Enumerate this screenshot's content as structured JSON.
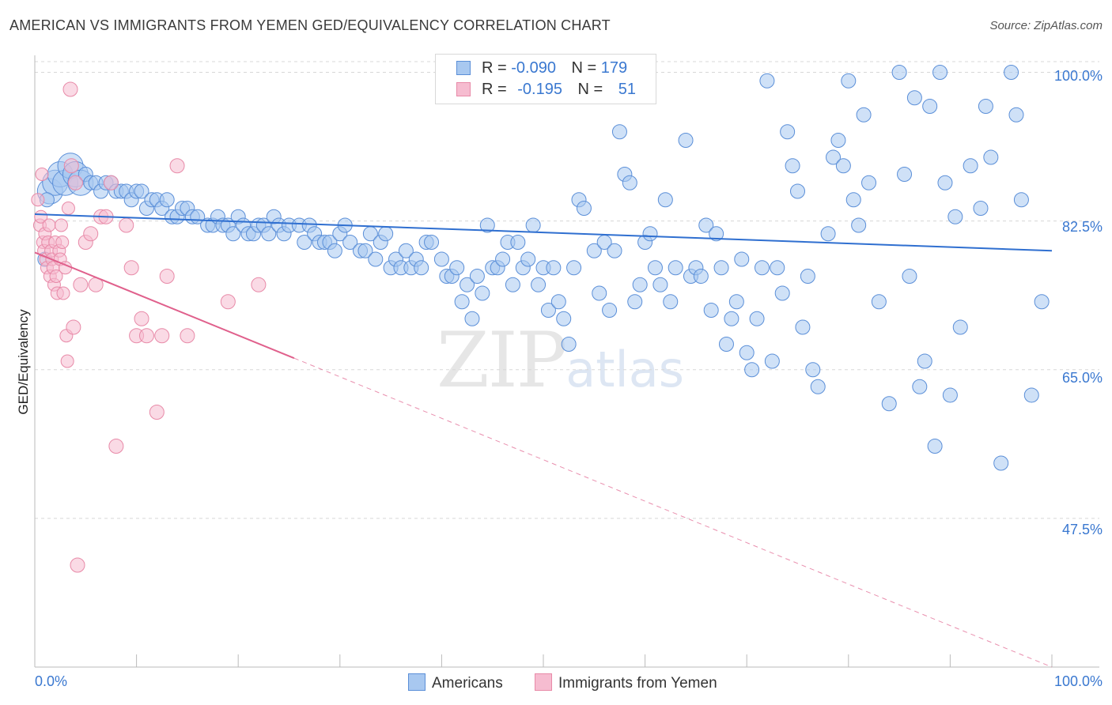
{
  "title": "AMERICAN VS IMMIGRANTS FROM YEMEN GED/EQUIVALENCY CORRELATION CHART",
  "source": "Source: ZipAtlas.com",
  "watermark": {
    "zip": "ZIP",
    "atlas": "atlas"
  },
  "legend": {
    "r_label": "R =",
    "n_label": "N =",
    "series": [
      {
        "r": "-0.090",
        "n": "179"
      },
      {
        "r": "-0.195",
        "n": "51"
      }
    ]
  },
  "bottom_legend": [
    "Americans",
    "Immigrants from Yemen"
  ],
  "colors": {
    "blue_fill": "#a8c8f0",
    "blue_stroke": "#5b8fd8",
    "blue_line": "#2f6fd0",
    "pink_fill": "#f6bcd0",
    "pink_stroke": "#e88aa8",
    "pink_line": "#e0608c",
    "tick_text": "#3a78d0",
    "grid": "#d8d8d8"
  },
  "chart_data": {
    "type": "scatter",
    "title": "AMERICAN VS IMMIGRANTS FROM YEMEN GED/EQUIVALENCY CORRELATION CHART",
    "xlabel": "",
    "ylabel": "GED/Equivalency",
    "xlim": [
      0,
      100
    ],
    "ylim": [
      30,
      102
    ],
    "x_tick_labels": [
      "0.0%",
      "100.0%"
    ],
    "y_ticks": [
      47.5,
      65.0,
      82.5,
      100.0
    ],
    "y_tick_labels": [
      "47.5%",
      "65.0%",
      "82.5%",
      "100.0%"
    ],
    "grid": true,
    "series": [
      {
        "name": "Americans",
        "r": -0.09,
        "n": 179,
        "trend": {
          "x": [
            0,
            100
          ],
          "y": [
            83.3,
            79.0
          ],
          "dashed_from": null
        },
        "points": [
          [
            1.5,
            86
          ],
          [
            2,
            87
          ],
          [
            2.5,
            88
          ],
          [
            3,
            87
          ],
          [
            3.5,
            89
          ],
          [
            4,
            88
          ],
          [
            4.5,
            87
          ],
          [
            5,
            88
          ],
          [
            5.5,
            87
          ],
          [
            6,
            87
          ],
          [
            6.5,
            86
          ],
          [
            7,
            87
          ],
          [
            7.5,
            87
          ],
          [
            8,
            86
          ],
          [
            8.5,
            86
          ],
          [
            9,
            86
          ],
          [
            9.5,
            85
          ],
          [
            10,
            86
          ],
          [
            10.5,
            86
          ],
          [
            11,
            84
          ],
          [
            11.5,
            85
          ],
          [
            12,
            85
          ],
          [
            12.5,
            84
          ],
          [
            13,
            85
          ],
          [
            13.5,
            83
          ],
          [
            14,
            83
          ],
          [
            14.5,
            84
          ],
          [
            15,
            84
          ],
          [
            15.5,
            83
          ],
          [
            16,
            83
          ],
          [
            17,
            82
          ],
          [
            17.5,
            82
          ],
          [
            18,
            83
          ],
          [
            18.5,
            82
          ],
          [
            19,
            82
          ],
          [
            19.5,
            81
          ],
          [
            20,
            83
          ],
          [
            20.5,
            82
          ],
          [
            21,
            81
          ],
          [
            21.5,
            81
          ],
          [
            22,
            82
          ],
          [
            22.5,
            82
          ],
          [
            23,
            81
          ],
          [
            23.5,
            83
          ],
          [
            24,
            82
          ],
          [
            24.5,
            81
          ],
          [
            25,
            82
          ],
          [
            26,
            82
          ],
          [
            26.5,
            80
          ],
          [
            27,
            82
          ],
          [
            27.5,
            81
          ],
          [
            28,
            80
          ],
          [
            28.5,
            80
          ],
          [
            29,
            80
          ],
          [
            29.5,
            79
          ],
          [
            30,
            81
          ],
          [
            30.5,
            82
          ],
          [
            31,
            80
          ],
          [
            32,
            79
          ],
          [
            32.5,
            79
          ],
          [
            33,
            81
          ],
          [
            33.5,
            78
          ],
          [
            34,
            80
          ],
          [
            34.5,
            81
          ],
          [
            35,
            77
          ],
          [
            35.5,
            78
          ],
          [
            36,
            77
          ],
          [
            36.5,
            79
          ],
          [
            37,
            77
          ],
          [
            37.5,
            78
          ],
          [
            38,
            77
          ],
          [
            38.5,
            80
          ],
          [
            39,
            80
          ],
          [
            40,
            78
          ],
          [
            40.5,
            76
          ],
          [
            41,
            76
          ],
          [
            41.5,
            77
          ],
          [
            42,
            73
          ],
          [
            42.5,
            75
          ],
          [
            43,
            71
          ],
          [
            43.5,
            76
          ],
          [
            44,
            74
          ],
          [
            44.5,
            82
          ],
          [
            45,
            77
          ],
          [
            45.5,
            77
          ],
          [
            46,
            78
          ],
          [
            46.5,
            80
          ],
          [
            47,
            75
          ],
          [
            47.5,
            80
          ],
          [
            48,
            77
          ],
          [
            48.5,
            78
          ],
          [
            49,
            82
          ],
          [
            49.5,
            75
          ],
          [
            50,
            77
          ],
          [
            50.5,
            72
          ],
          [
            51,
            77
          ],
          [
            51.5,
            73
          ],
          [
            52,
            71
          ],
          [
            52.5,
            68
          ],
          [
            53,
            77
          ],
          [
            53.5,
            85
          ],
          [
            54,
            84
          ],
          [
            55,
            79
          ],
          [
            55.5,
            74
          ],
          [
            56,
            80
          ],
          [
            56.5,
            72
          ],
          [
            57,
            79
          ],
          [
            57.5,
            93
          ],
          [
            58,
            88
          ],
          [
            58.5,
            87
          ],
          [
            59,
            73
          ],
          [
            59.5,
            75
          ],
          [
            60,
            80
          ],
          [
            60.5,
            81
          ],
          [
            61,
            77
          ],
          [
            61.5,
            75
          ],
          [
            62,
            85
          ],
          [
            62.5,
            73
          ],
          [
            63,
            77
          ],
          [
            64,
            92
          ],
          [
            64.5,
            76
          ],
          [
            65,
            77
          ],
          [
            65.5,
            76
          ],
          [
            66,
            82
          ],
          [
            66.5,
            72
          ],
          [
            67,
            81
          ],
          [
            67.5,
            77
          ],
          [
            68,
            68
          ],
          [
            68.5,
            71
          ],
          [
            69,
            73
          ],
          [
            69.5,
            78
          ],
          [
            70,
            67
          ],
          [
            70.5,
            65
          ],
          [
            71,
            71
          ],
          [
            71.5,
            77
          ],
          [
            72,
            99
          ],
          [
            72.5,
            66
          ],
          [
            73,
            77
          ],
          [
            73.5,
            74
          ],
          [
            74,
            93
          ],
          [
            74.5,
            89
          ],
          [
            75,
            86
          ],
          [
            75.5,
            70
          ],
          [
            76,
            76
          ],
          [
            76.5,
            65
          ],
          [
            77,
            63
          ],
          [
            78,
            81
          ],
          [
            78.5,
            90
          ],
          [
            79,
            92
          ],
          [
            79.5,
            89
          ],
          [
            80,
            99
          ],
          [
            80.5,
            85
          ],
          [
            81,
            82
          ],
          [
            81.5,
            95
          ],
          [
            82,
            87
          ],
          [
            83,
            73
          ],
          [
            84,
            61
          ],
          [
            85,
            100
          ],
          [
            85.5,
            88
          ],
          [
            86,
            76
          ],
          [
            86.5,
            97
          ],
          [
            87,
            63
          ],
          [
            87.5,
            66
          ],
          [
            88,
            96
          ],
          [
            88.5,
            56
          ],
          [
            89,
            100
          ],
          [
            89.5,
            87
          ],
          [
            90,
            62
          ],
          [
            90.5,
            83
          ],
          [
            91,
            70
          ],
          [
            92,
            89
          ],
          [
            93,
            84
          ],
          [
            93.5,
            96
          ],
          [
            94,
            90
          ],
          [
            95,
            54
          ],
          [
            96,
            100
          ],
          [
            96.5,
            95
          ],
          [
            97,
            85
          ],
          [
            98,
            62
          ],
          [
            99,
            73
          ],
          [
            1,
            78
          ],
          [
            1.2,
            85
          ]
        ]
      },
      {
        "name": "Immigrants from Yemen",
        "r": -0.195,
        "n": 51,
        "trend": {
          "x": [
            0,
            100
          ],
          "y": [
            78.8,
            30.0
          ],
          "dashed_from": 25.5
        },
        "points": [
          [
            0.3,
            85
          ],
          [
            0.5,
            82
          ],
          [
            0.6,
            83
          ],
          [
            0.8,
            80
          ],
          [
            0.9,
            79
          ],
          [
            1,
            81
          ],
          [
            1.1,
            78
          ],
          [
            1.2,
            77
          ],
          [
            1.3,
            80
          ],
          [
            1.4,
            82
          ],
          [
            1.5,
            76
          ],
          [
            1.6,
            79
          ],
          [
            1.7,
            78
          ],
          [
            1.8,
            77
          ],
          [
            1.9,
            75
          ],
          [
            2,
            80
          ],
          [
            2.1,
            76
          ],
          [
            2.2,
            74
          ],
          [
            2.4,
            79
          ],
          [
            2.5,
            78
          ],
          [
            2.6,
            82
          ],
          [
            2.7,
            80
          ],
          [
            2.8,
            74
          ],
          [
            3,
            77
          ],
          [
            3.1,
            69
          ],
          [
            3.2,
            66
          ],
          [
            3.3,
            84
          ],
          [
            3.5,
            98
          ],
          [
            3.6,
            89
          ],
          [
            3.8,
            70
          ],
          [
            4,
            87
          ],
          [
            4.2,
            42
          ],
          [
            4.5,
            75
          ],
          [
            5,
            80
          ],
          [
            5.5,
            81
          ],
          [
            6,
            75
          ],
          [
            6.5,
            83
          ],
          [
            7,
            83
          ],
          [
            7.5,
            87
          ],
          [
            8,
            56
          ],
          [
            9,
            82
          ],
          [
            9.5,
            77
          ],
          [
            10,
            69
          ],
          [
            10.5,
            71
          ],
          [
            11,
            69
          ],
          [
            12,
            60
          ],
          [
            12.5,
            69
          ],
          [
            13,
            76
          ],
          [
            14,
            89
          ],
          [
            15,
            69
          ],
          [
            19,
            73
          ],
          [
            22,
            75
          ],
          [
            0.7,
            88
          ]
        ]
      }
    ]
  }
}
